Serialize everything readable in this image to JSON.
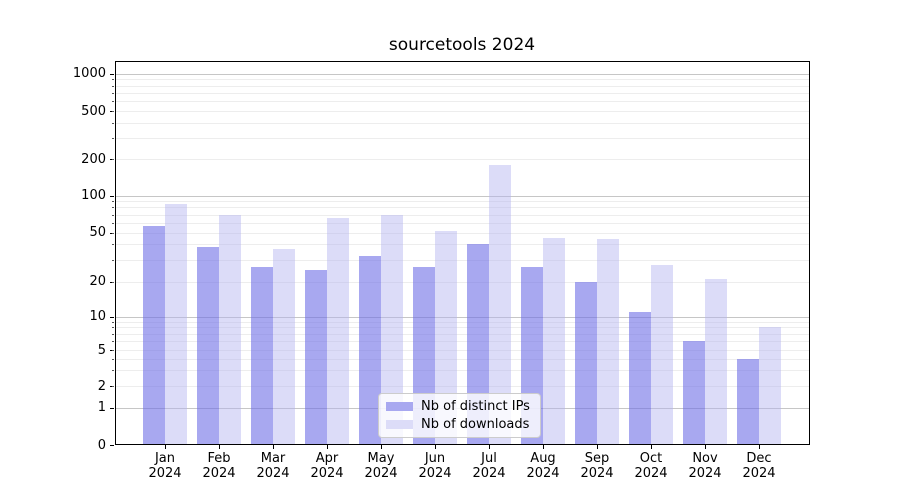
{
  "chart_data": {
    "type": "bar",
    "title": "sourcetools 2024",
    "categories": [
      "Jan",
      "Feb",
      "Mar",
      "Apr",
      "May",
      "Jun",
      "Jul",
      "Aug",
      "Sep",
      "Oct",
      "Nov",
      "Dec"
    ],
    "x_tick_year": "2024",
    "xlabel": "",
    "ylabel": "",
    "yscale": "symlog",
    "y_ticks": [
      0,
      1,
      2,
      5,
      10,
      20,
      50,
      100,
      200,
      500,
      1000
    ],
    "ylim": [
      0,
      1300
    ],
    "grid": "both",
    "legend_position": "lower-center-inside",
    "series": [
      {
        "name": "Nb of distinct IPs",
        "color": "#a8a8f0",
        "values": [
          57,
          38,
          26,
          25,
          32,
          26,
          40,
          26,
          20,
          11,
          6,
          4
        ]
      },
      {
        "name": "Nb of downloads",
        "color": "#dcdcf8",
        "values": [
          85,
          70,
          37,
          66,
          70,
          51,
          178,
          45,
          44,
          27,
          21,
          8
        ]
      }
    ]
  }
}
